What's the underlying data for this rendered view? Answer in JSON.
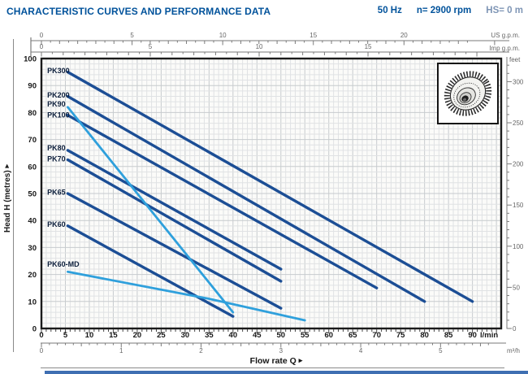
{
  "header": {
    "title": "CHARACTERISTIC CURVES AND PERFORMANCE DATA",
    "frequency": "50 Hz",
    "speed": "n= 2900 rpm",
    "suction_head": "HS= 0 m"
  },
  "icons": {
    "right_arrow": "▸",
    "impeller": "impeller-drawing"
  },
  "palette": {
    "dark_curve": "#1c4e95",
    "light_curve": "#2fa0dc",
    "title_blue": "#00529b",
    "muted_header": "#7e95b5"
  },
  "chart_data": {
    "type": "line",
    "title": "Pump characteristic curves: Head vs Flow rate",
    "xlabel": "Flow rate Q",
    "ylabel": "Head H (metres)",
    "xlim": [
      0,
      96
    ],
    "ylim": [
      0,
      100
    ],
    "grid": {
      "minor_x_lmin": 1,
      "minor_y_m": 2,
      "major_x_lmin": 5,
      "major_y_m": 10
    },
    "axes": {
      "left_metres": {
        "label": "Head H (metres)",
        "ticks": [
          0,
          10,
          20,
          30,
          40,
          50,
          60,
          70,
          80,
          90,
          100
        ]
      },
      "bottom_lmin": {
        "unit": "l/min",
        "ticks": [
          0,
          5,
          10,
          15,
          20,
          25,
          30,
          35,
          40,
          45,
          50,
          55,
          60,
          65,
          70,
          75,
          80,
          85,
          90
        ]
      },
      "bottom_m3h": {
        "unit": "m³/h",
        "ticks": [
          0,
          1,
          2,
          3,
          4,
          5
        ],
        "lmin_per_unit": 16.667
      },
      "top_usgpm": {
        "unit": "US g.p.m.",
        "ticks": [
          0,
          5,
          10,
          15,
          20
        ],
        "lmin_per_unit": 3.785
      },
      "top_impgpm": {
        "unit": "Imp g.p.m.",
        "ticks": [
          0,
          5,
          10,
          15
        ],
        "lmin_per_unit": 4.546
      },
      "right_feet": {
        "unit": "feet",
        "ticks": [
          0,
          50,
          100,
          150,
          200,
          250,
          300
        ],
        "metres_per_unit": 0.3048
      }
    },
    "series": [
      {
        "name": "PK300",
        "light": false,
        "points": [
          [
            5.5,
            95
          ],
          [
            90,
            10
          ]
        ],
        "label_xy": [
          1.2,
          95.5
        ]
      },
      {
        "name": "PK200",
        "light": false,
        "points": [
          [
            5.5,
            86
          ],
          [
            80,
            10
          ]
        ],
        "label_xy": [
          1.2,
          86.5
        ]
      },
      {
        "name": "PK90",
        "light": true,
        "points": [
          [
            5.5,
            82
          ],
          [
            40,
            6
          ]
        ],
        "label_xy": [
          1.2,
          83.2
        ]
      },
      {
        "name": "PK100",
        "light": false,
        "points": [
          [
            5.5,
            79
          ],
          [
            70,
            15
          ]
        ],
        "label_xy": [
          1.2,
          79.0
        ]
      },
      {
        "name": "PK80",
        "light": false,
        "points": [
          [
            5.5,
            66
          ],
          [
            50,
            22
          ]
        ],
        "label_xy": [
          1.2,
          66.8
        ]
      },
      {
        "name": "PK70",
        "light": false,
        "points": [
          [
            5.5,
            62.5
          ],
          [
            50,
            17.5
          ]
        ],
        "label_xy": [
          1.2,
          62.8
        ]
      },
      {
        "name": "PK65",
        "light": false,
        "points": [
          [
            5.5,
            50
          ],
          [
            50,
            7.5
          ]
        ],
        "label_xy": [
          1.2,
          50.5
        ]
      },
      {
        "name": "PK60",
        "light": false,
        "points": [
          [
            5.5,
            38
          ],
          [
            40,
            4.5
          ]
        ],
        "label_xy": [
          1.2,
          38.5
        ]
      },
      {
        "name": "PK60-MD",
        "light": true,
        "points": [
          [
            5.5,
            21
          ],
          [
            35,
            11
          ],
          [
            55,
            3
          ]
        ],
        "label_xy": [
          1.2,
          23.8
        ]
      }
    ]
  }
}
